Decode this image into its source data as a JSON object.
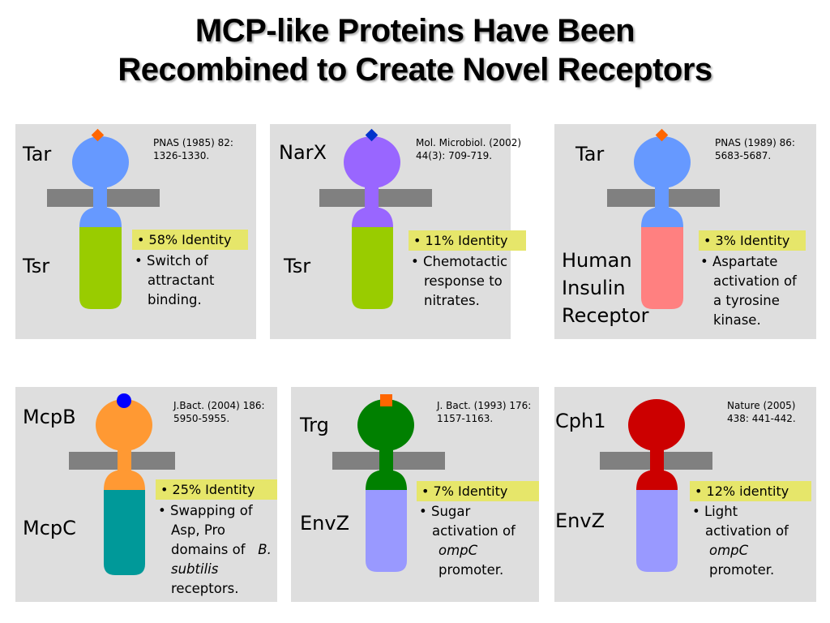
{
  "title": {
    "line1": "MCP-like Proteins Have Been",
    "line2": "Recombined to Create Novel Receptors"
  },
  "panels": [
    {
      "top_label": "Tar",
      "bottom_label": "Tsr",
      "reference": [
        "PNAS (1985) 82:",
        "1326-1330."
      ],
      "identity": "•  58% Identity",
      "description": [
        "•  Switch of",
        "attractant",
        "binding."
      ],
      "ligand_shape": "diamond",
      "colors": {
        "head": "#6699ff",
        "lower": "#99cc00",
        "ligand": "#ff6600"
      }
    },
    {
      "top_label": "NarX",
      "bottom_label": "Tsr",
      "reference": [
        "Mol. Microbiol. (2002)",
        "44(3): 709-719."
      ],
      "identity": "•  11% Identity",
      "description": [
        "•  Chemotactic",
        "response to",
        "nitrates."
      ],
      "ligand_shape": "diamond",
      "colors": {
        "head": "#9966ff",
        "lower": "#99cc00",
        "ligand": "#0033cc"
      }
    },
    {
      "top_label": "Tar",
      "bottom_label_lines": [
        "Human",
        "Insulin",
        "Receptor"
      ],
      "reference": [
        "PNAS (1989) 86:",
        "5683-5687."
      ],
      "identity": "•  3% Identity",
      "description": [
        "•  Aspartate",
        "activation of",
        "a tyrosine",
        "kinase."
      ],
      "ligand_shape": "diamond",
      "colors": {
        "head": "#6699ff",
        "lower": "#ff8080",
        "ligand": "#ff6600"
      }
    },
    {
      "top_label": "McpB",
      "bottom_label": "McpC",
      "reference": [
        "J.Bact. (2004) 186:",
        "5950-5955."
      ],
      "identity": "•  25% Identity",
      "description": [
        "•  Swapping of",
        "Asp, Pro",
        "domains of",
        "B.",
        "subtilis",
        "receptors."
      ],
      "ligand_shape": "circle",
      "colors": {
        "head": "#ff9933",
        "lower": "#009999",
        "ligand": "#0000ff"
      }
    },
    {
      "top_label": "Trg",
      "bottom_label": "EnvZ",
      "reference": [
        "J. Bact. (1993) 176:",
        "1157-1163."
      ],
      "identity": "•  7% Identity",
      "description": [
        "•  Sugar",
        "activation of",
        "ompC",
        "promoter."
      ],
      "ligand_shape": "square",
      "colors": {
        "head": "#008000",
        "lower": "#9999ff",
        "ligand": "#ff6600"
      }
    },
    {
      "top_label": "Cph1",
      "bottom_label": "EnvZ",
      "reference": [
        "Nature (2005)",
        "438: 441-442."
      ],
      "identity": "•  12% identity",
      "description": [
        "•  Light",
        "activation of",
        "ompC",
        "promoter."
      ],
      "ligand_shape": "none",
      "colors": {
        "head": "#cc0000",
        "lower": "#9999ff",
        "membrane": "#808080"
      }
    }
  ]
}
